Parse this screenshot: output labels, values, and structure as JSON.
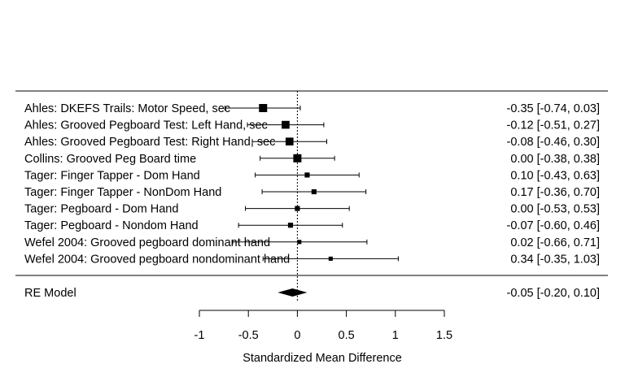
{
  "chart_data": {
    "type": "forest",
    "xlabel": "Standardized Mean Difference",
    "xlim": [
      -1,
      1.5
    ],
    "xticks": [
      -1,
      -0.5,
      0,
      0.5,
      1,
      1.5
    ],
    "xtick_labels": [
      "-1",
      "-0.5",
      "0",
      "0.5",
      "1",
      "1.5"
    ],
    "reference_line": 0,
    "studies": [
      {
        "label": "Ahles: DKEFS Trails: Motor Speed, sec",
        "estimate": -0.35,
        "lower": -0.74,
        "upper": 0.03,
        "ci_text": "-0.35 [-0.74, 0.03]",
        "weight": 1.0
      },
      {
        "label": "Ahles: Grooved Pegboard Test: Left Hand, sec",
        "estimate": -0.12,
        "lower": -0.51,
        "upper": 0.27,
        "ci_text": "-0.12 [-0.51, 0.27]",
        "weight": 0.95
      },
      {
        "label": "Ahles: Grooved Pegboard Test: Right Hand, sec",
        "estimate": -0.08,
        "lower": -0.46,
        "upper": 0.3,
        "ci_text": "-0.08 [-0.46, 0.30]",
        "weight": 0.95
      },
      {
        "label": "Collins: Grooved Peg Board time",
        "estimate": 0.0,
        "lower": -0.38,
        "upper": 0.38,
        "ci_text": "0.00 [-0.38, 0.38]",
        "weight": 1.0
      },
      {
        "label": "Tager: Finger Tapper - Dom Hand",
        "estimate": 0.1,
        "lower": -0.43,
        "upper": 0.63,
        "ci_text": "0.10 [-0.43, 0.63]",
        "weight": 0.45
      },
      {
        "label": "Tager: Finger Tapper - NonDom Hand",
        "estimate": 0.17,
        "lower": -0.36,
        "upper": 0.7,
        "ci_text": "0.17 [-0.36, 0.70]",
        "weight": 0.45
      },
      {
        "label": "Tager: Pegboard - Dom Hand",
        "estimate": 0.0,
        "lower": -0.53,
        "upper": 0.53,
        "ci_text": "0.00 [-0.53, 0.53]",
        "weight": 0.45
      },
      {
        "label": "Tager: Pegboard - Nondom Hand",
        "estimate": -0.07,
        "lower": -0.6,
        "upper": 0.46,
        "ci_text": "-0.07 [-0.60, 0.46]",
        "weight": 0.45
      },
      {
        "label": "Wefel 2004: Grooved pegboard dominant hand",
        "estimate": 0.02,
        "lower": -0.66,
        "upper": 0.71,
        "ci_text": "0.02 [-0.66, 0.71]",
        "weight": 0.3
      },
      {
        "label": "Wefel 2004: Grooved pegboard nondominant hand",
        "estimate": 0.34,
        "lower": -0.35,
        "upper": 1.03,
        "ci_text": "0.34 [-0.35, 1.03]",
        "weight": 0.3
      }
    ],
    "summary": {
      "label": "RE Model",
      "estimate": -0.05,
      "lower": -0.2,
      "upper": 0.1,
      "ci_text": "-0.05 [-0.20, 0.10]"
    }
  }
}
